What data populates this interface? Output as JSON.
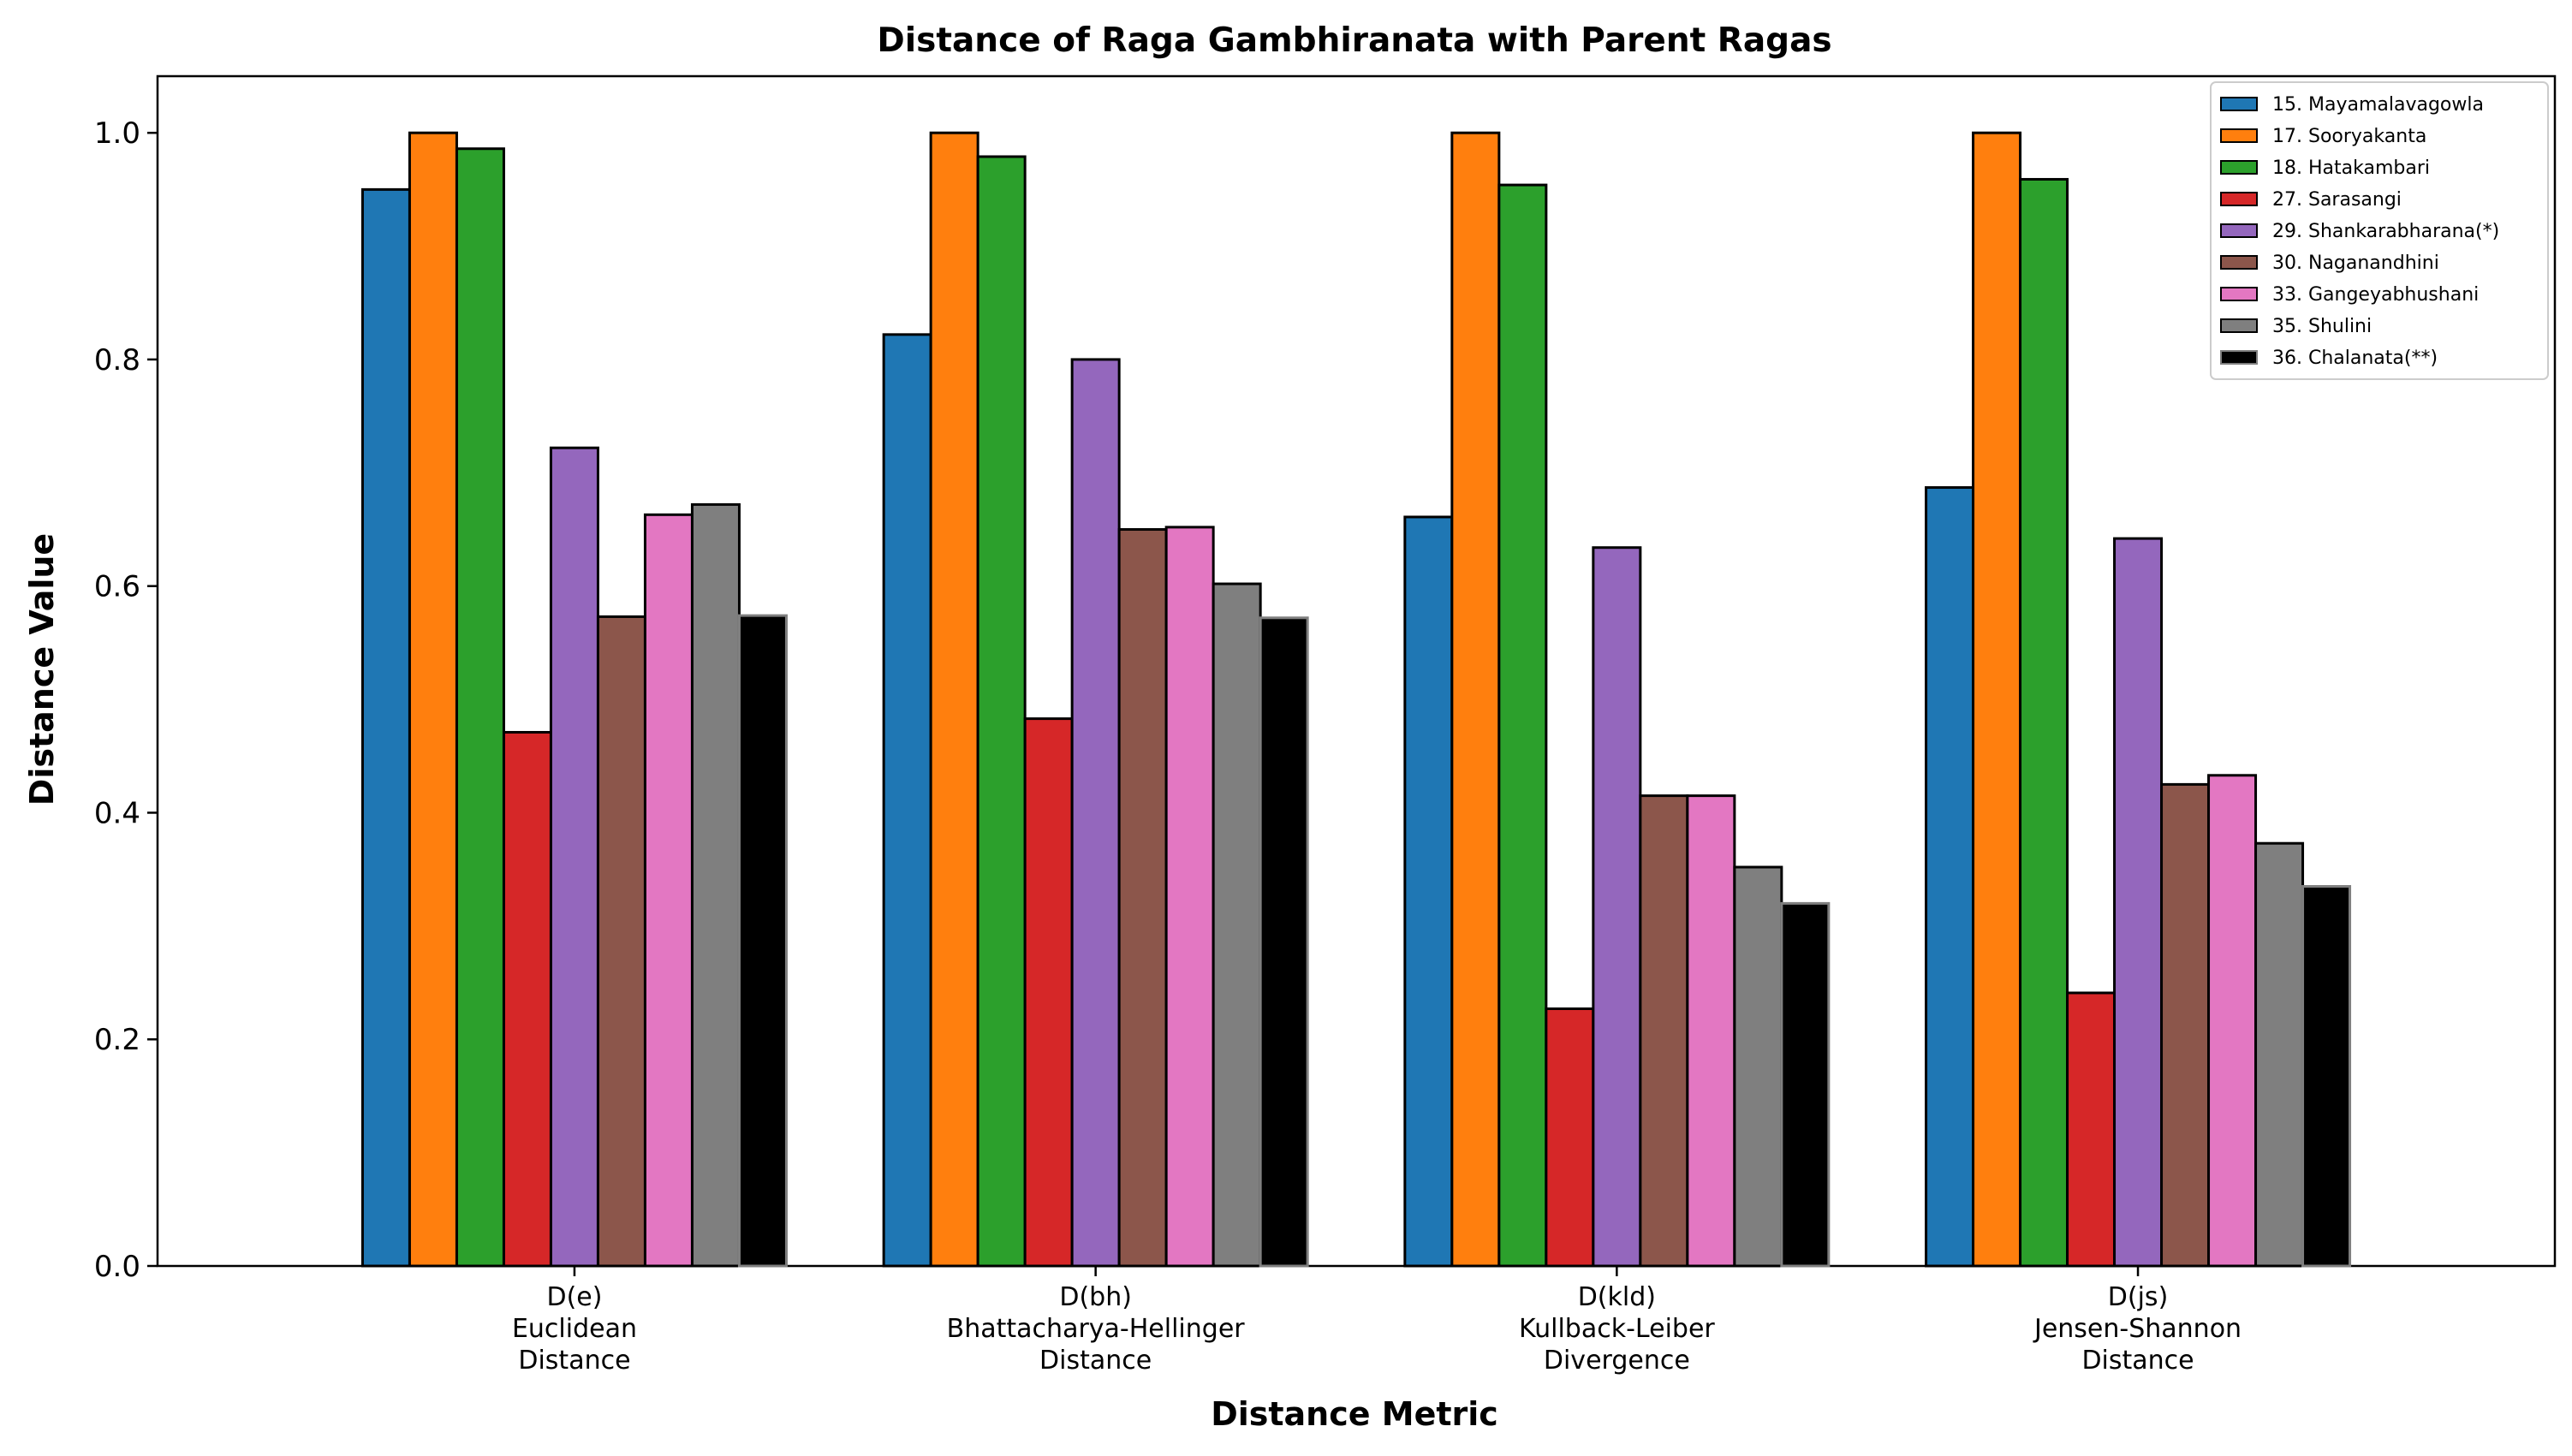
{
  "chart_data": {
    "type": "bar",
    "title": "Distance of Raga Gambhiranata with Parent Ragas",
    "xlabel": "Distance Metric",
    "ylabel": "Distance Value",
    "ylim": [
      0,
      1.05
    ],
    "yticks": [
      "0.0",
      "0.2",
      "0.4",
      "0.6",
      "0.8",
      "1.0"
    ],
    "grid": false,
    "legend_position": "top-right",
    "categories": [
      [
        "D(e)",
        "Euclidean",
        "Distance"
      ],
      [
        "D(bh)",
        "Bhattacharya-Hellinger",
        "Distance"
      ],
      [
        "D(kld)",
        "Kullback-Leiber",
        "Divergence"
      ],
      [
        "D(js)",
        "Jensen-Shannon",
        "Distance"
      ]
    ],
    "series": [
      {
        "name": "15. Mayamalavagowla",
        "color": "#1f77b4",
        "edge": "#000000",
        "values": [
          0.95,
          0.822,
          0.661,
          0.687
        ]
      },
      {
        "name": "17. Sooryakanta",
        "color": "#ff7f0e",
        "edge": "#000000",
        "values": [
          1.0,
          1.0,
          1.0,
          1.0
        ]
      },
      {
        "name": "18. Hatakambari",
        "color": "#2ca02c",
        "edge": "#000000",
        "values": [
          0.986,
          0.979,
          0.954,
          0.959
        ]
      },
      {
        "name": "27. Sarasangi",
        "color": "#d62728",
        "edge": "#000000",
        "values": [
          0.471,
          0.483,
          0.227,
          0.241
        ]
      },
      {
        "name": "29. Shankarabharana(*)",
        "color": "#9467bd",
        "edge": "#000000",
        "values": [
          0.722,
          0.8,
          0.634,
          0.642
        ]
      },
      {
        "name": "30. Naganandhini",
        "color": "#8c564b",
        "edge": "#000000",
        "values": [
          0.573,
          0.65,
          0.415,
          0.425
        ]
      },
      {
        "name": "33. Gangeyabhushani",
        "color": "#e377c2",
        "edge": "#000000",
        "values": [
          0.663,
          0.652,
          0.415,
          0.433
        ]
      },
      {
        "name": "35. Shulini",
        "color": "#7f7f7f",
        "edge": "#000000",
        "values": [
          0.672,
          0.602,
          0.352,
          0.373
        ]
      },
      {
        "name": "36. Chalanata(**)",
        "color": "#000000",
        "edge": "#7f7f7f",
        "values": [
          0.574,
          0.572,
          0.32,
          0.335
        ]
      }
    ]
  }
}
